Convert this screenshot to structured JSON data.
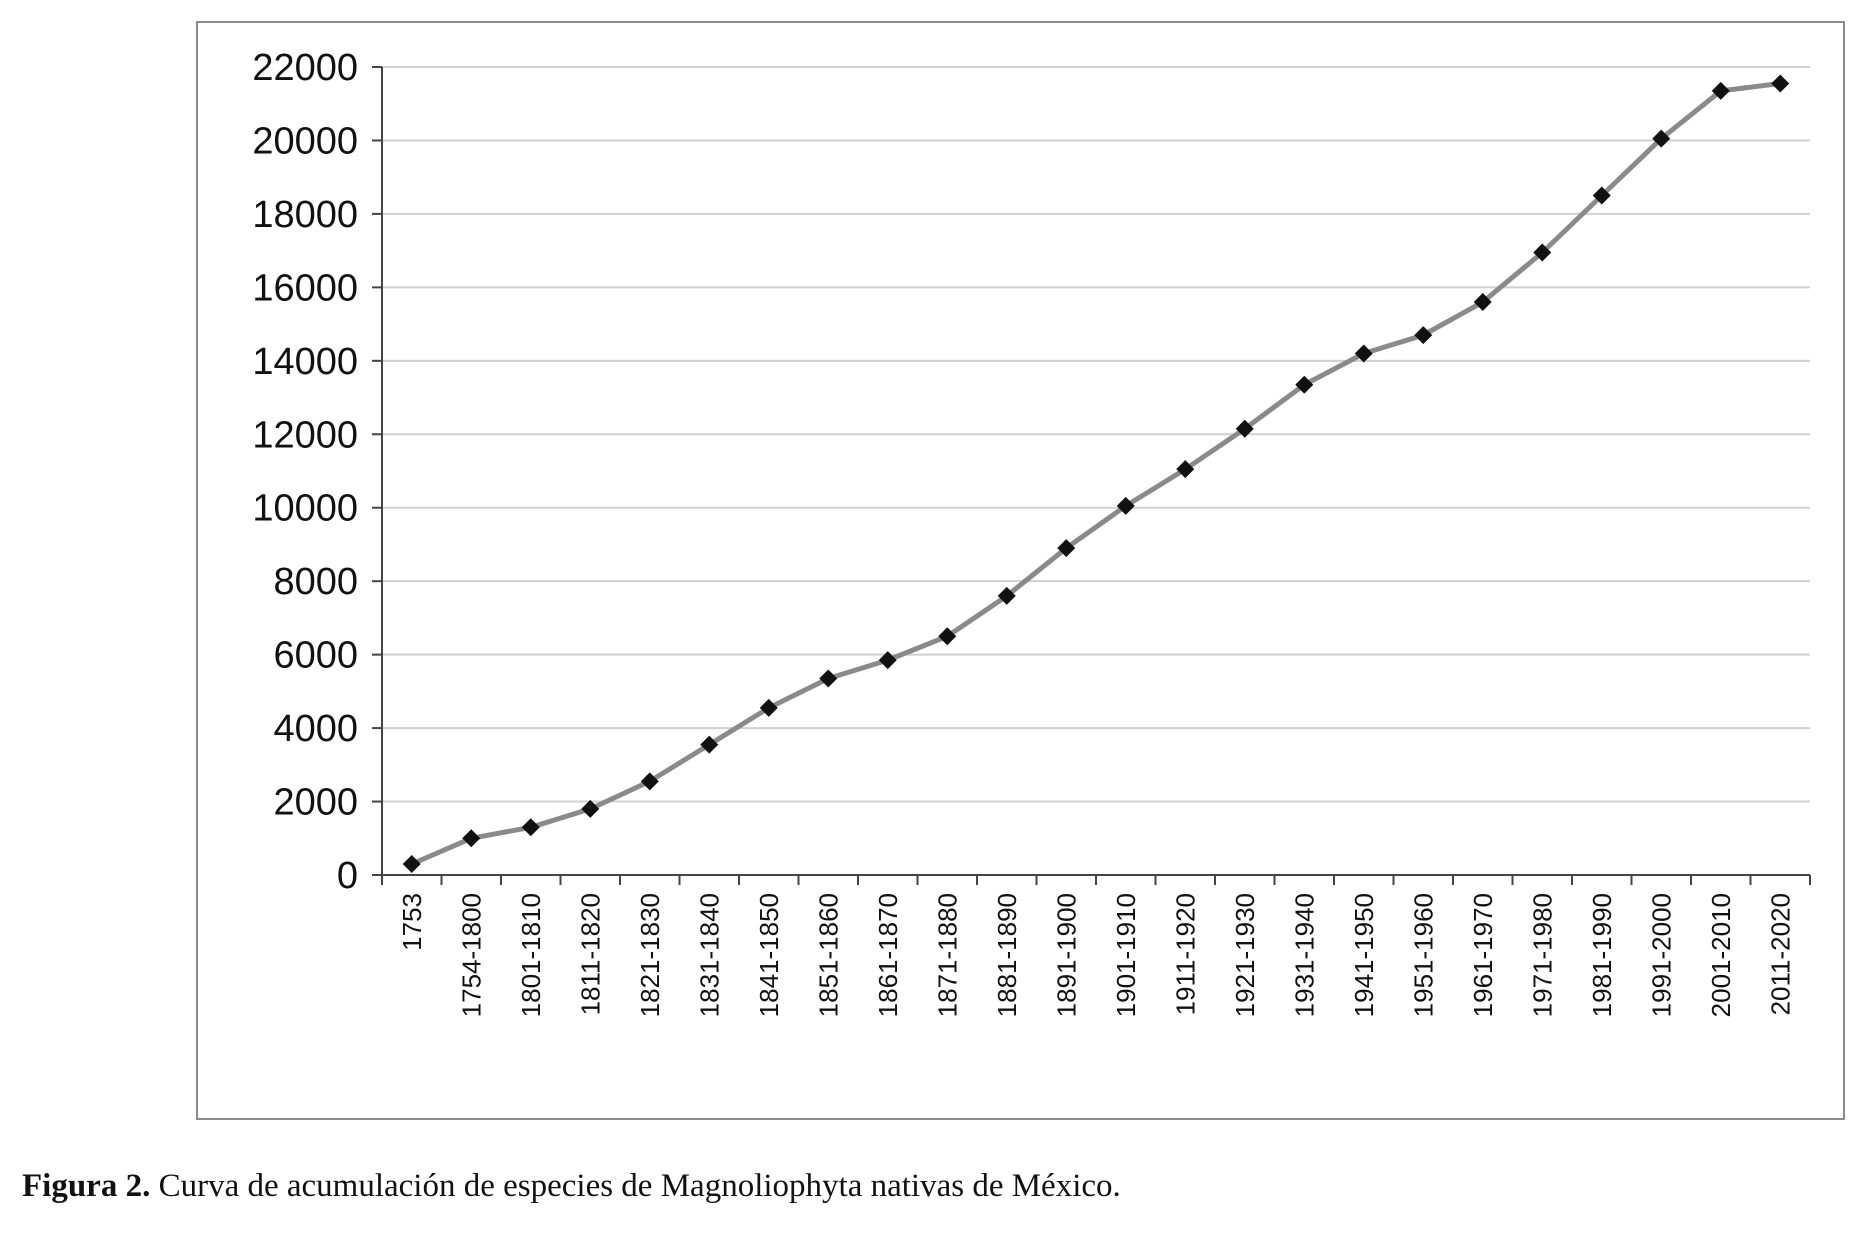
{
  "caption": {
    "label": "Figura 2.",
    "text": " Curva de acumulación de especies de Magnoliophyta nativas de México."
  },
  "chart_data": {
    "type": "line",
    "categories": [
      "1753",
      "1754-1800",
      "1801-1810",
      "1811-1820",
      "1821-1830",
      "1831-1840",
      "1841-1850",
      "1851-1860",
      "1861-1870",
      "1871-1880",
      "1881-1890",
      "1891-1900",
      "1901-1910",
      "1911-1920",
      "1921-1930",
      "1931-1940",
      "1941-1950",
      "1951-1960",
      "1961-1970",
      "1971-1980",
      "1981-1990",
      "1991-2000",
      "2001-2010",
      "2011-2020"
    ],
    "series": [
      {
        "values": [
          300,
          1000,
          1300,
          1800,
          2550,
          3550,
          4550,
          5350,
          5850,
          6500,
          7600,
          8900,
          10050,
          11050,
          12150,
          13350,
          14200,
          14700,
          15600,
          16950,
          18500,
          20050,
          21350,
          21550
        ]
      }
    ],
    "yticks": [
      "0",
      "2000",
      "4000",
      "6000",
      "8000",
      "10000",
      "12000",
      "14000",
      "16000",
      "18000",
      "20000",
      "22000"
    ],
    "ylim": [
      0,
      22000
    ],
    "grid": true,
    "line_color": "#8a8a8a",
    "marker_color": "#111111",
    "grid_color": "#d0d0d0"
  }
}
